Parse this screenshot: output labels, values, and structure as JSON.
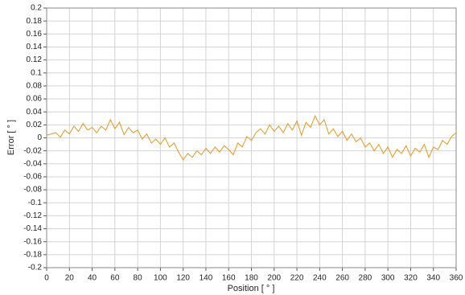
{
  "chart_data": {
    "type": "line",
    "xlabel": "Position [ ° ]",
    "ylabel": "Error [ ° ]",
    "x": [
      0,
      4,
      8,
      12,
      16,
      20,
      24,
      28,
      32,
      36,
      40,
      44,
      48,
      52,
      56,
      60,
      64,
      68,
      72,
      76,
      80,
      84,
      88,
      92,
      96,
      100,
      104,
      108,
      112,
      116,
      120,
      124,
      128,
      132,
      136,
      140,
      144,
      148,
      152,
      156,
      160,
      164,
      168,
      172,
      176,
      180,
      184,
      188,
      192,
      196,
      200,
      204,
      208,
      212,
      216,
      220,
      224,
      228,
      232,
      236,
      240,
      244,
      248,
      252,
      256,
      260,
      264,
      268,
      272,
      276,
      280,
      284,
      288,
      292,
      296,
      300,
      304,
      308,
      312,
      316,
      320,
      324,
      328,
      332,
      336,
      340,
      344,
      348,
      352,
      356,
      360
    ],
    "series": [
      {
        "name": "Error",
        "color": "#e8961e",
        "values": [
          0.004,
          0.006,
          0.008,
          0.001,
          0.012,
          0.006,
          0.018,
          0.01,
          0.022,
          0.012,
          0.016,
          0.008,
          0.018,
          0.012,
          0.028,
          0.014,
          0.024,
          0.005,
          0.016,
          0.008,
          0.012,
          -0.002,
          0.006,
          -0.008,
          -0.002,
          -0.01,
          0.0,
          -0.014,
          -0.008,
          -0.022,
          -0.034,
          -0.024,
          -0.03,
          -0.02,
          -0.026,
          -0.016,
          -0.024,
          -0.014,
          -0.022,
          -0.012,
          -0.018,
          -0.026,
          -0.008,
          -0.014,
          0.002,
          -0.004,
          0.008,
          0.014,
          0.006,
          0.02,
          0.01,
          0.018,
          0.008,
          0.022,
          0.012,
          0.026,
          0.004,
          0.024,
          0.016,
          0.034,
          0.02,
          0.028,
          0.006,
          0.014,
          0.002,
          0.01,
          -0.004,
          0.006,
          -0.006,
          0.0,
          -0.014,
          -0.008,
          -0.02,
          -0.01,
          -0.024,
          -0.014,
          -0.03,
          -0.018,
          -0.024,
          -0.012,
          -0.028,
          -0.016,
          -0.022,
          -0.01,
          -0.03,
          -0.014,
          -0.018,
          -0.004,
          -0.01,
          0.002,
          0.008
        ]
      }
    ],
    "xlim": [
      0,
      360
    ],
    "xticks": [
      0,
      20,
      40,
      60,
      80,
      100,
      120,
      140,
      160,
      180,
      200,
      220,
      240,
      260,
      280,
      300,
      320,
      340,
      360
    ],
    "ylim": [
      -0.2,
      0.2
    ],
    "yticks": [
      0.2,
      0.18,
      0.16,
      0.14,
      0.12,
      0.1,
      0.08,
      0.06,
      0.04,
      0.02,
      0,
      -0.02,
      -0.04,
      -0.06,
      -0.08,
      -0.1,
      -0.12,
      -0.14,
      -0.16,
      -0.18,
      -0.2
    ],
    "grid": true
  }
}
